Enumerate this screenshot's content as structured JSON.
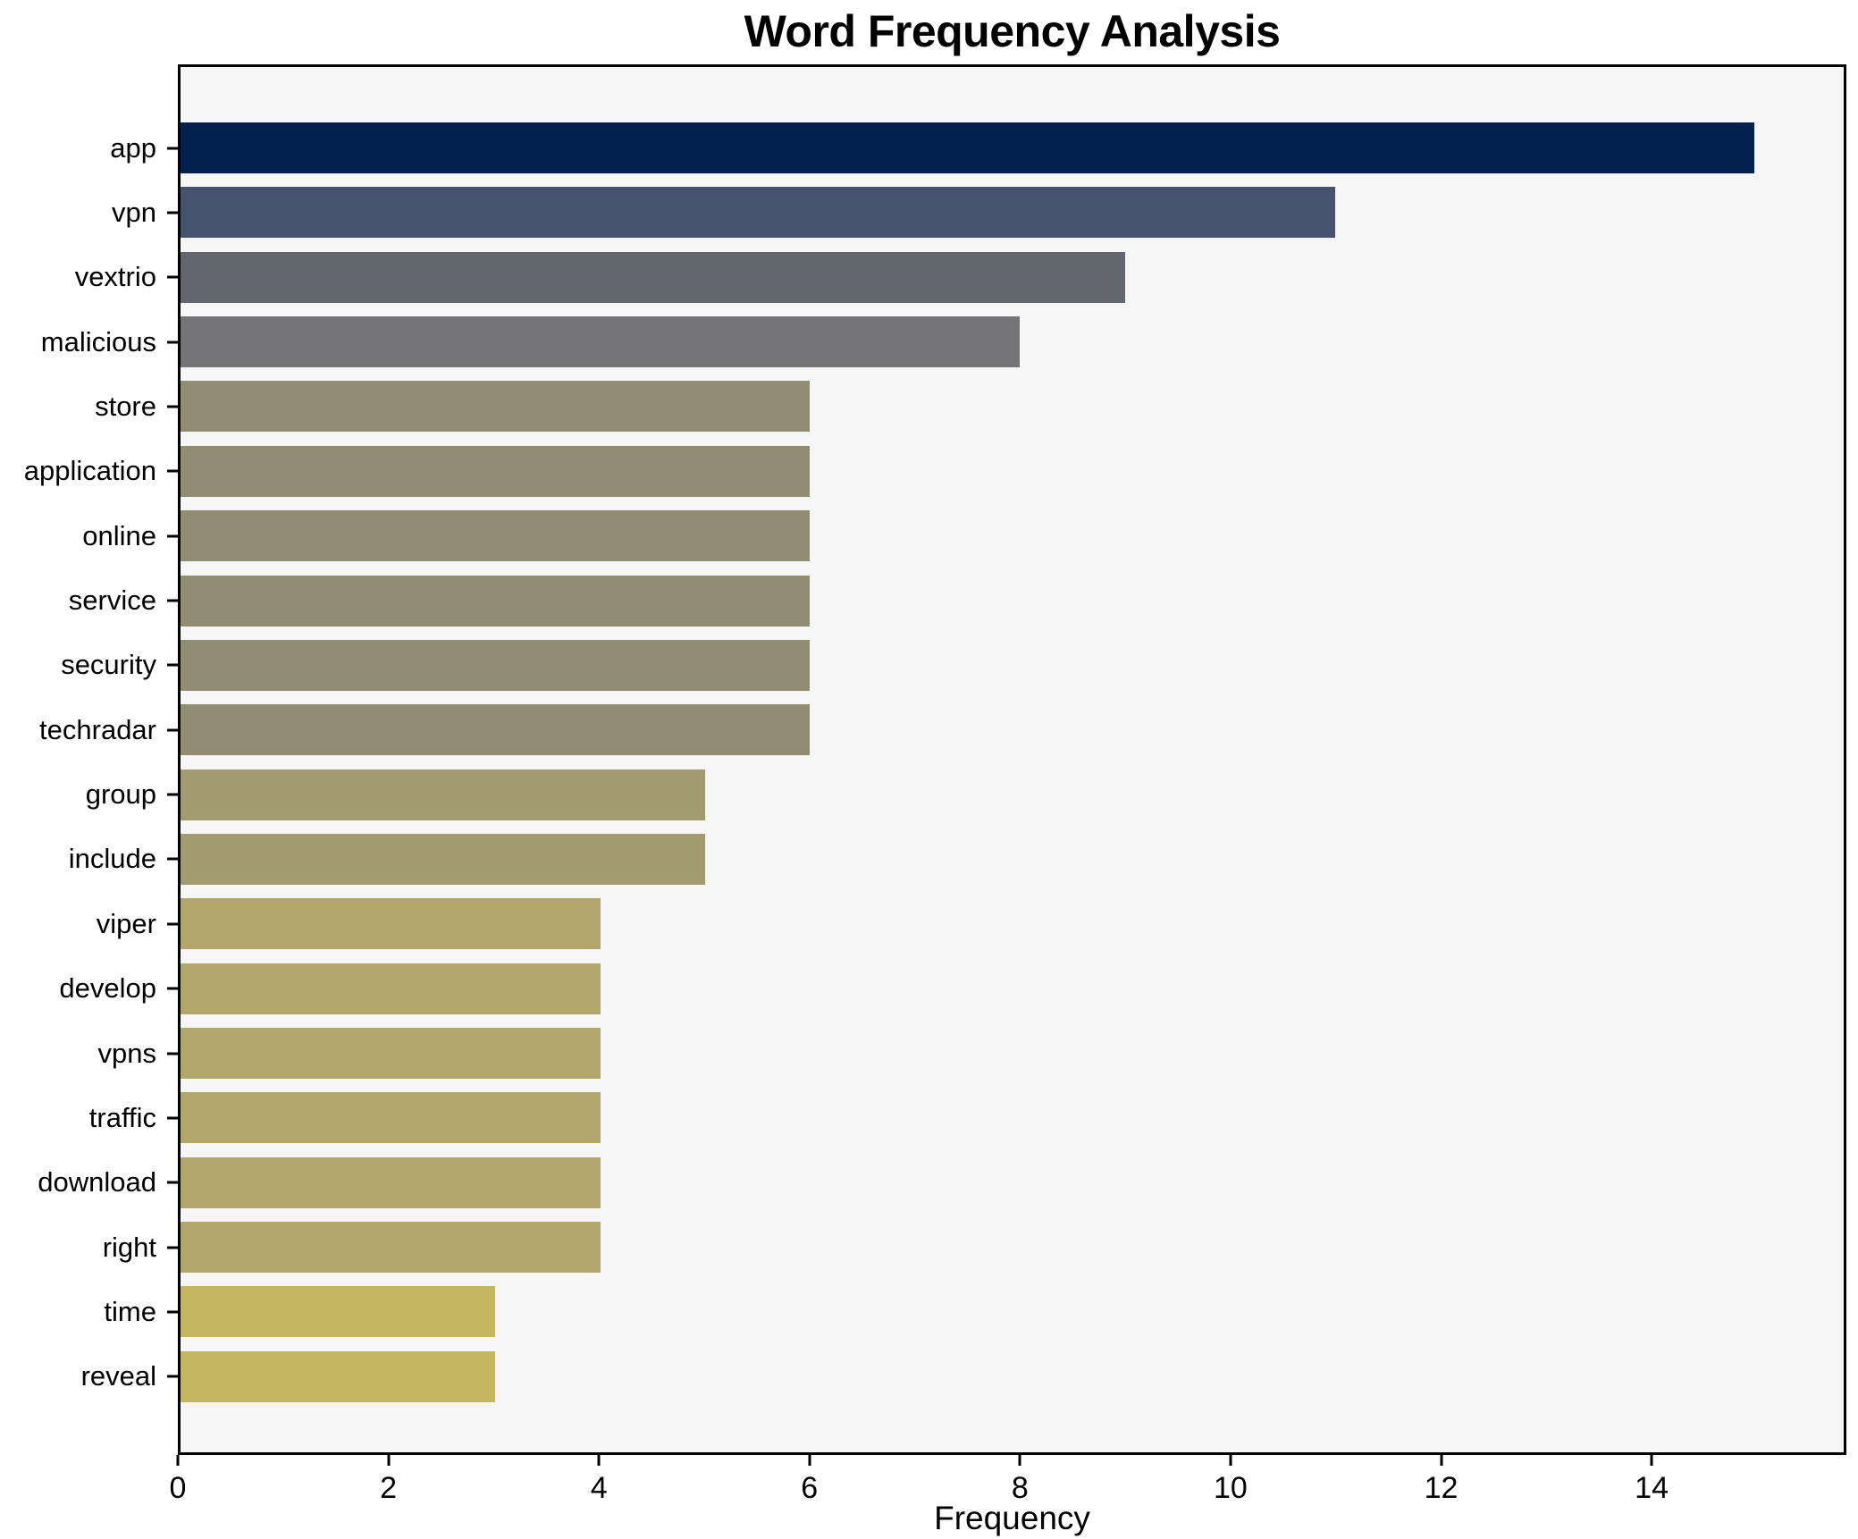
{
  "chart_data": {
    "type": "bar",
    "orientation": "horizontal",
    "title": "Word Frequency Analysis",
    "xlabel": "Frequency",
    "ylabel": "",
    "categories": [
      "app",
      "vpn",
      "vextrio",
      "malicious",
      "store",
      "application",
      "online",
      "service",
      "security",
      "techradar",
      "group",
      "include",
      "viper",
      "develop",
      "vpns",
      "traffic",
      "download",
      "right",
      "time",
      "reveal"
    ],
    "values": [
      15,
      11,
      9,
      8,
      6,
      6,
      6,
      6,
      6,
      6,
      5,
      5,
      4,
      4,
      4,
      4,
      4,
      4,
      3,
      3
    ],
    "bar_colors": [
      "#02214e",
      "#47536e",
      "#63666f",
      "#747476",
      "#928c73",
      "#928c73",
      "#928c73",
      "#928c73",
      "#928c73",
      "#928c73",
      "#a29a70",
      "#a29a70",
      "#b2a76b",
      "#b2a76b",
      "#b2a76b",
      "#b2a76b",
      "#b2a76b",
      "#b2a76b",
      "#c5b75f",
      "#c5b75f"
    ],
    "xlim": [
      0,
      15.85
    ],
    "xticks": [
      0,
      2,
      4,
      6,
      8,
      10,
      12,
      14
    ],
    "grid": false,
    "legend": false,
    "plot_background": "#f6f6f7",
    "figure_background": "#ffffff",
    "colormap": "cividis"
  }
}
